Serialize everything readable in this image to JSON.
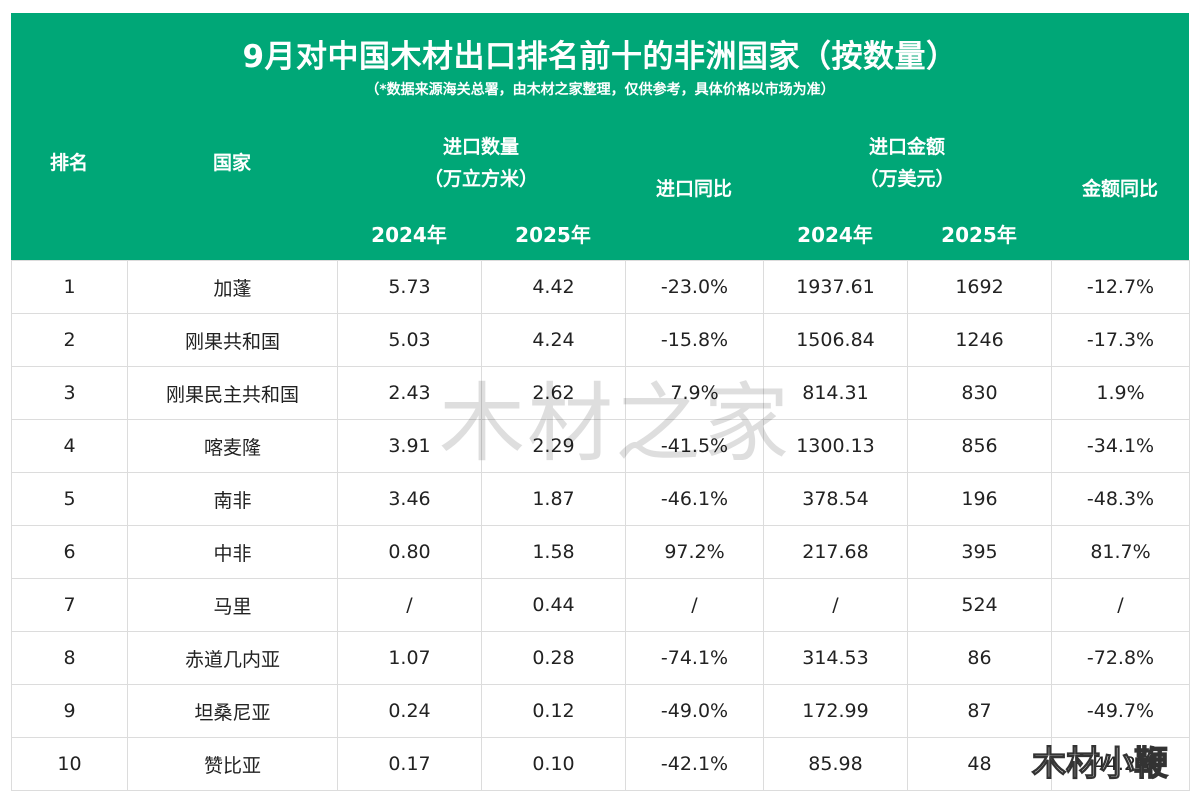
{
  "title": "9月对中国木材出口排名前十的非洲国家（按数量）",
  "subtitle": "（*数据来源海关总署，由木材之家整理，仅供参考，具体价格以市场为准）",
  "headers": {
    "rank": "排名",
    "country": "国家",
    "import_qty": "进口数量",
    "import_qty_unit": "（万立方米）",
    "import_yoy": "进口同比",
    "import_amount": "进口金额",
    "import_amount_unit": "（万美元）",
    "amount_yoy": "金额同比",
    "year_2024": "2024年",
    "year_2025": "2025年"
  },
  "rows": [
    {
      "rank": "1",
      "country": "加蓬",
      "qty_2024": "5.73",
      "qty_2025": "4.42",
      "qty_yoy": "-23.0%",
      "amt_2024": "1937.61",
      "amt_2025": "1692",
      "amt_yoy": "-12.7%"
    },
    {
      "rank": "2",
      "country": "刚果共和国",
      "qty_2024": "5.03",
      "qty_2025": "4.24",
      "qty_yoy": "-15.8%",
      "amt_2024": "1506.84",
      "amt_2025": "1246",
      "amt_yoy": "-17.3%"
    },
    {
      "rank": "3",
      "country": "刚果民主共和国",
      "qty_2024": "2.43",
      "qty_2025": "2.62",
      "qty_yoy": "7.9%",
      "amt_2024": "814.31",
      "amt_2025": "830",
      "amt_yoy": "1.9%"
    },
    {
      "rank": "4",
      "country": "喀麦隆",
      "qty_2024": "3.91",
      "qty_2025": "2.29",
      "qty_yoy": "-41.5%",
      "amt_2024": "1300.13",
      "amt_2025": "856",
      "amt_yoy": "-34.1%"
    },
    {
      "rank": "5",
      "country": "南非",
      "qty_2024": "3.46",
      "qty_2025": "1.87",
      "qty_yoy": "-46.1%",
      "amt_2024": "378.54",
      "amt_2025": "196",
      "amt_yoy": "-48.3%"
    },
    {
      "rank": "6",
      "country": "中非",
      "qty_2024": "0.80",
      "qty_2025": "1.58",
      "qty_yoy": "97.2%",
      "amt_2024": "217.68",
      "amt_2025": "395",
      "amt_yoy": "81.7%"
    },
    {
      "rank": "7",
      "country": "马里",
      "qty_2024": "/",
      "qty_2025": "0.44",
      "qty_yoy": "/",
      "amt_2024": "/",
      "amt_2025": "524",
      "amt_yoy": "/"
    },
    {
      "rank": "8",
      "country": "赤道几内亚",
      "qty_2024": "1.07",
      "qty_2025": "0.28",
      "qty_yoy": "-74.1%",
      "amt_2024": "314.53",
      "amt_2025": "86",
      "amt_yoy": "-72.8%"
    },
    {
      "rank": "9",
      "country": "坦桑尼亚",
      "qty_2024": "0.24",
      "qty_2025": "0.12",
      "qty_yoy": "-49.0%",
      "amt_2024": "172.99",
      "amt_2025": "87",
      "amt_yoy": "-49.7%"
    },
    {
      "rank": "10",
      "country": "赞比亚",
      "qty_2024": "0.17",
      "qty_2025": "0.10",
      "qty_yoy": "-42.1%",
      "amt_2024": "85.98",
      "amt_2025": "48",
      "amt_yoy": "-44.2%"
    }
  ],
  "watermark": "木材之家",
  "corner_watermark": "木材小鞭",
  "colors": {
    "header_bg": "#00a777",
    "negative": "#1a9b5c",
    "positive": "#e8141c",
    "border": "#dcdcdc"
  }
}
